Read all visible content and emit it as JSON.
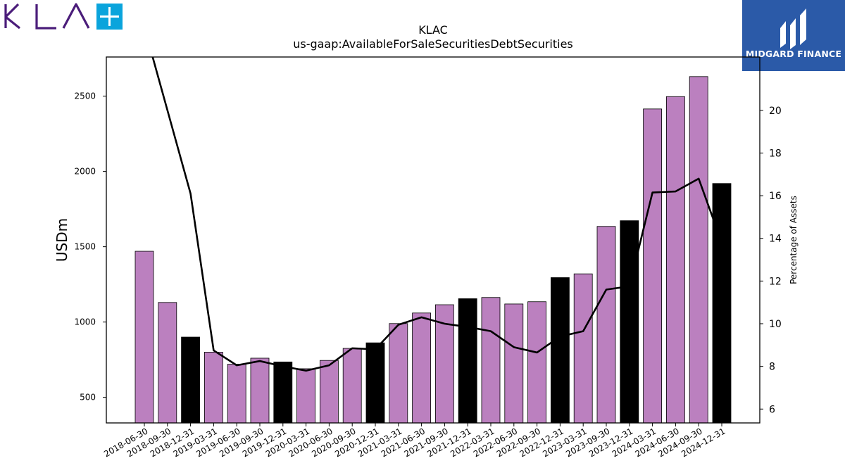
{
  "logos": {
    "left": {
      "name": "KLA",
      "mark": "+",
      "text_color": "#4b1d7a",
      "mark_color": "#0aa4dc"
    },
    "right": {
      "name": "MIDGARD FINANCE",
      "bg_color": "#2b5aa8"
    }
  },
  "chart_data": {
    "type": "bar",
    "title": "KLAC",
    "subtitle": "us-gaap:AvailableForSaleSecuritiesDebtSecurities",
    "ylabel": "USDm",
    "y2label": "Percentage of Assets",
    "categories": [
      "2018-06-30",
      "2018-09-30",
      "2018-12-31",
      "2019-03-31",
      "2019-06-30",
      "2019-09-30",
      "2019-12-31",
      "2020-03-31",
      "2020-06-30",
      "2020-09-30",
      "2020-12-31",
      "2021-03-31",
      "2021-06-30",
      "2021-09-30",
      "2021-12-31",
      "2022-03-31",
      "2022-06-30",
      "2022-09-30",
      "2022-12-31",
      "2023-03-31",
      "2023-09-30",
      "2023-12-31",
      "2024-03-31",
      "2024-06-30",
      "2024-09-30",
      "2024-12-31"
    ],
    "values": [
      1470,
      1130,
      900,
      800,
      720,
      760,
      735,
      690,
      745,
      825,
      862,
      990,
      1060,
      1115,
      1155,
      1163,
      1120,
      1135,
      1295,
      1320,
      1635,
      1673,
      2415,
      2497,
      2630,
      1920
    ],
    "highlight": [
      false,
      false,
      true,
      false,
      false,
      false,
      true,
      false,
      false,
      false,
      true,
      false,
      false,
      false,
      true,
      false,
      false,
      false,
      true,
      false,
      false,
      true,
      false,
      false,
      false,
      true
    ],
    "bar_colors": {
      "normal": "#bb80bf",
      "highlight": "#000000",
      "edge": "#000000"
    },
    "ylim": [
      330,
      2760
    ],
    "yticks": [
      500,
      1000,
      1500,
      2000,
      2500
    ],
    "line": {
      "name": "Percentage of Assets",
      "color": "#000000",
      "values": [
        23.9,
        20.0,
        16.1,
        8.75,
        8.05,
        8.25,
        8.0,
        7.8,
        8.05,
        8.85,
        8.8,
        9.95,
        10.3,
        10.0,
        9.85,
        9.65,
        8.9,
        8.65,
        9.4,
        9.65,
        11.6,
        11.75,
        16.15,
        16.2,
        16.8,
        13.8
      ]
    },
    "y2lim": [
      5.35,
      22.5
    ],
    "y2ticks": [
      6,
      8,
      10,
      12,
      14,
      16,
      18,
      20
    ],
    "grid": false,
    "legend": "none"
  }
}
